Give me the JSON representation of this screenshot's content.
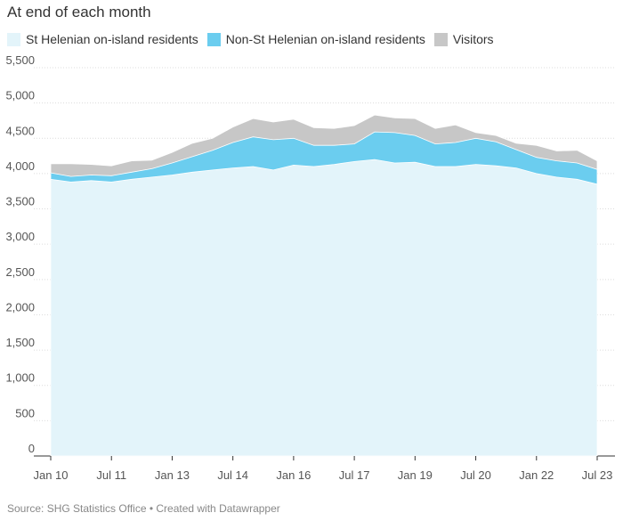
{
  "title": "At end of each month",
  "footer": "Source: SHG Statistics Office • Created with Datawrapper",
  "colors": {
    "st_helenian": "#e3f4fa",
    "non_st_helenian": "#6bcdef",
    "visitors": "#c7c7c7",
    "grid": "#dcdcdc"
  },
  "chart_data": {
    "type": "area",
    "stacked": true,
    "grid": true,
    "legend_position": "top-left",
    "x_ticks": [
      "Jan 10",
      "Jul 11",
      "Jan 13",
      "Jul 14",
      "Jan 16",
      "Jul 17",
      "Jan 19",
      "Jul 20",
      "Jan 22",
      "Jul 23"
    ],
    "y_ticks": [
      "0",
      "500",
      "1,000",
      "1,500",
      "2,000",
      "2,500",
      "3,000",
      "3,500",
      "4,000",
      "4,500",
      "5,000",
      "5,500"
    ],
    "ylim": [
      0,
      5500
    ],
    "xlim": [
      "Jan 10",
      "Jul 23"
    ],
    "x": [
      "2010-01",
      "2010-07",
      "2011-01",
      "2011-07",
      "2012-01",
      "2012-07",
      "2013-01",
      "2013-07",
      "2014-01",
      "2014-07",
      "2015-01",
      "2015-07",
      "2016-01",
      "2016-07",
      "2017-01",
      "2017-07",
      "2018-01",
      "2018-07",
      "2019-01",
      "2019-07",
      "2020-01",
      "2020-07",
      "2021-01",
      "2021-07",
      "2022-01",
      "2022-07",
      "2023-01",
      "2023-07"
    ],
    "series": [
      {
        "name": "St Helenian on-island residents",
        "values": [
          3920,
          3880,
          3900,
          3880,
          3920,
          3950,
          3980,
          4020,
          4050,
          4080,
          4100,
          4050,
          4120,
          4100,
          4130,
          4170,
          4200,
          4150,
          4160,
          4100,
          4100,
          4130,
          4110,
          4080,
          4000,
          3950,
          3920,
          3850
        ]
      },
      {
        "name": "Non-St Helenian on-island residents",
        "values": [
          90,
          80,
          80,
          90,
          100,
          120,
          170,
          220,
          280,
          360,
          420,
          430,
          380,
          300,
          270,
          250,
          390,
          430,
          380,
          320,
          340,
          370,
          340,
          260,
          230,
          230,
          230,
          210
        ]
      },
      {
        "name": "Visitors",
        "values": [
          130,
          180,
          150,
          140,
          160,
          120,
          150,
          190,
          170,
          220,
          260,
          250,
          270,
          250,
          240,
          260,
          240,
          210,
          240,
          220,
          250,
          80,
          90,
          90,
          170,
          140,
          180,
          120
        ]
      }
    ]
  }
}
